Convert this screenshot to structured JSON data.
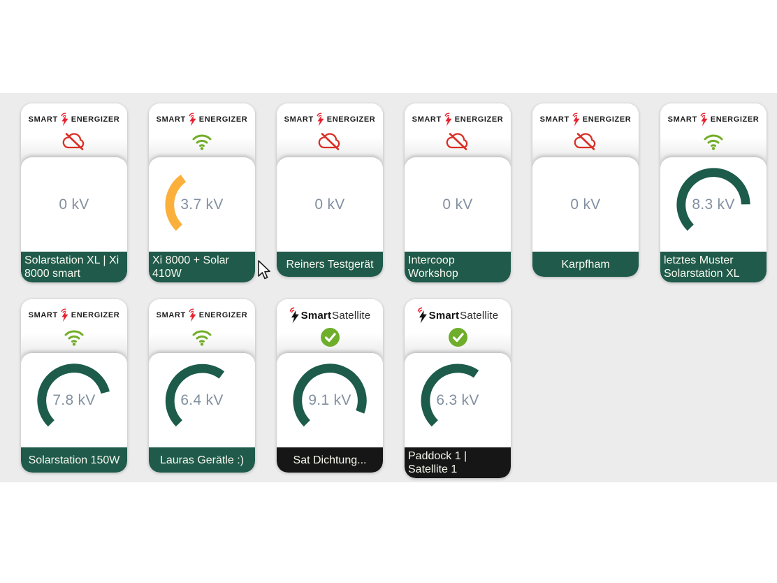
{
  "brands": {
    "energizer": {
      "prefix": "SMART",
      "suffix": "ENERGIZER"
    },
    "satellite": {
      "prefix": "Smart",
      "suffix": "Satellite"
    }
  },
  "gauge": {
    "min": 0,
    "max": 10,
    "unit": "kV",
    "start_deg": 225,
    "sweep_deg": 270
  },
  "colors": {
    "band_bg": "#ececec",
    "gauge_green": "#1d5b4b",
    "gauge_orange": "#fbb03b",
    "label_green": "#1f5a4b",
    "label_black": "#161616",
    "value_text": "#8190a0",
    "wifi_green": "#72ad27",
    "offline_red": "#d93025",
    "check_green": "#6fae2b",
    "bolt_red": "#e8212e",
    "bolt_black": "#111111"
  },
  "cards": [
    {
      "brand": "energizer",
      "status": "offline",
      "value": 0,
      "display": "0 kV",
      "arc": "green",
      "label_style": "green",
      "name": "Solarstation XL | Xi 8000 smart"
    },
    {
      "brand": "energizer",
      "status": "online",
      "value": 3.7,
      "display": "3.7 kV",
      "arc": "orange",
      "label_style": "green",
      "name": "Xi 8000 + Solar 410W"
    },
    {
      "brand": "energizer",
      "status": "offline",
      "value": 0,
      "display": "0 kV",
      "arc": "green",
      "label_style": "green",
      "name": "Reiners Testgerät"
    },
    {
      "brand": "energizer",
      "status": "offline",
      "value": 0,
      "display": "0 kV",
      "arc": "green",
      "label_style": "green",
      "name": "Intercoop Workshop"
    },
    {
      "brand": "energizer",
      "status": "offline",
      "value": 0,
      "display": "0 kV",
      "arc": "green",
      "label_style": "green",
      "name": "Karpfham"
    },
    {
      "brand": "energizer",
      "status": "online",
      "value": 8.3,
      "display": "8.3 kV",
      "arc": "green",
      "label_style": "green",
      "name": "letztes Muster Solarstation XL"
    },
    {
      "brand": "energizer",
      "status": "online",
      "value": 7.8,
      "display": "7.8 kV",
      "arc": "green",
      "label_style": "green",
      "name": "Solarstation 150W"
    },
    {
      "brand": "energizer",
      "status": "online",
      "value": 6.4,
      "display": "6.4 kV",
      "arc": "green",
      "label_style": "green",
      "name": "Lauras Gerätle :)"
    },
    {
      "brand": "satellite",
      "status": "check",
      "value": 9.1,
      "display": "9.1 kV",
      "arc": "green",
      "label_style": "black",
      "name": "Sat Dichtung..."
    },
    {
      "brand": "satellite",
      "status": "check",
      "value": 6.3,
      "display": "6.3 kV",
      "arc": "green",
      "label_style": "black",
      "name": "Paddock 1 | Satellite 1"
    }
  ]
}
